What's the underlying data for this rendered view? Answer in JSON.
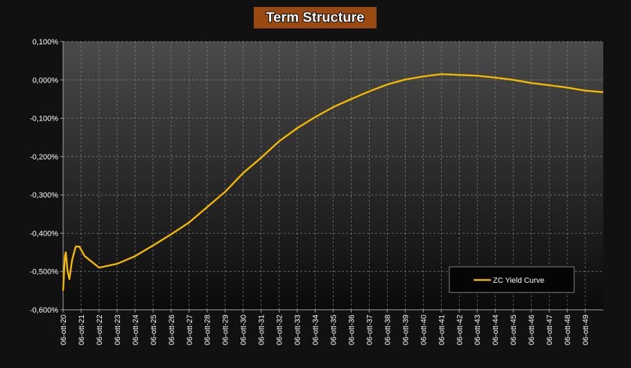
{
  "chart_data": {
    "type": "line",
    "title": "Term Structure",
    "x": [
      2020.0,
      2020.1,
      2020.15,
      2020.25,
      2020.35,
      2020.5,
      2020.7,
      2020.9,
      2021.2,
      2022,
      2023,
      2024,
      2025,
      2026,
      2027,
      2028,
      2029,
      2030,
      2031,
      2032,
      2033,
      2034,
      2035,
      2036,
      2037,
      2038,
      2039,
      2040,
      2041,
      2042,
      2043,
      2044,
      2045,
      2046,
      2047,
      2048,
      2049,
      2050
    ],
    "series": [
      {
        "name": "ZC Yield Curve",
        "color": "#f5b800",
        "values": [
          -0.55,
          -0.46,
          -0.45,
          -0.5,
          -0.52,
          -0.47,
          -0.435,
          -0.435,
          -0.46,
          -0.49,
          -0.48,
          -0.46,
          -0.432,
          -0.403,
          -0.372,
          -0.332,
          -0.292,
          -0.243,
          -0.203,
          -0.16,
          -0.126,
          -0.097,
          -0.071,
          -0.05,
          -0.03,
          -0.012,
          0.001,
          0.009,
          0.015,
          0.013,
          0.011,
          0.006,
          0.0,
          -0.008,
          -0.014,
          -0.02,
          -0.028,
          -0.032
        ]
      }
    ],
    "xlim": [
      2020,
      2050
    ],
    "xticks": [
      {
        "value": 2020,
        "label": "06-ott-20"
      },
      {
        "value": 2021,
        "label": "06-ott-21"
      },
      {
        "value": 2022,
        "label": "06-ott-22"
      },
      {
        "value": 2023,
        "label": "06-ott-23"
      },
      {
        "value": 2024,
        "label": "06-ott-24"
      },
      {
        "value": 2025,
        "label": "06-ott-25"
      },
      {
        "value": 2026,
        "label": "06-ott-26"
      },
      {
        "value": 2027,
        "label": "06-ott-27"
      },
      {
        "value": 2028,
        "label": "06-ott-28"
      },
      {
        "value": 2029,
        "label": "06-ott-29"
      },
      {
        "value": 2030,
        "label": "06-ott-30"
      },
      {
        "value": 2031,
        "label": "06-ott-31"
      },
      {
        "value": 2032,
        "label": "06-ott-32"
      },
      {
        "value": 2033,
        "label": "06-ott-33"
      },
      {
        "value": 2034,
        "label": "06-ott-34"
      },
      {
        "value": 2035,
        "label": "06-ott-35"
      },
      {
        "value": 2036,
        "label": "06-ott-36"
      },
      {
        "value": 2037,
        "label": "06-ott-37"
      },
      {
        "value": 2038,
        "label": "06-ott-38"
      },
      {
        "value": 2039,
        "label": "06-ott-39"
      },
      {
        "value": 2040,
        "label": "06-ott-40"
      },
      {
        "value": 2041,
        "label": "06-ott-41"
      },
      {
        "value": 2042,
        "label": "06-ott-42"
      },
      {
        "value": 2043,
        "label": "06-ott-43"
      },
      {
        "value": 2044,
        "label": "06-ott-44"
      },
      {
        "value": 2045,
        "label": "06-ott-45"
      },
      {
        "value": 2046,
        "label": "06-ott-46"
      },
      {
        "value": 2047,
        "label": "06-ott-47"
      },
      {
        "value": 2048,
        "label": "06-ott-48"
      },
      {
        "value": 2049,
        "label": "06-ott-49"
      }
    ],
    "ylim": [
      -0.6,
      0.1
    ],
    "yticks": [
      {
        "value": 0.1,
        "label": "0,100%"
      },
      {
        "value": 0,
        "label": "0,000%"
      },
      {
        "value": -0.1,
        "label": "-0,100%"
      },
      {
        "value": -0.2,
        "label": "-0,200%"
      },
      {
        "value": -0.3,
        "label": "-0,300%"
      },
      {
        "value": -0.4,
        "label": "-0,400%"
      },
      {
        "value": -0.5,
        "label": "-0,500%"
      },
      {
        "value": -0.6,
        "label": "-0,600%"
      }
    ],
    "grid": true,
    "legend": "lower right"
  }
}
